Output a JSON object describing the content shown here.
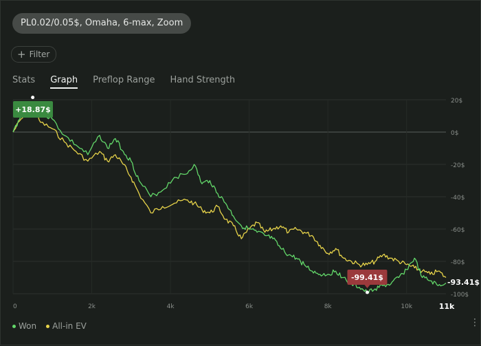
{
  "header": {
    "game_label": "PL0.02/0.05$, Omaha, 6-max, Zoom"
  },
  "filter": {
    "label": "Filter"
  },
  "tabs": [
    {
      "label": "Stats"
    },
    {
      "label": "Graph",
      "active": true
    },
    {
      "label": "Preflop Range"
    },
    {
      "label": "Hand Strength"
    }
  ],
  "colors": {
    "won": "#63d86a",
    "ev": "#e8d44a",
    "max_badge": "#3a8a40",
    "min_badge": "#9a3a3c",
    "background": "#1b1f1c"
  },
  "chart_data": {
    "type": "line",
    "x_range": [
      0,
      11000
    ],
    "y_range": [
      -100,
      20
    ],
    "x_ticks": [
      "0",
      "2k",
      "4k",
      "6k",
      "8k",
      "10k",
      "11k"
    ],
    "y_ticks": [
      "20$",
      "0$",
      "-20$",
      "-40$",
      "-60$",
      "-80$",
      "-100$"
    ],
    "grid": true,
    "series": [
      {
        "name": "Won",
        "x": [
          0,
          200,
          500,
          700,
          1000,
          1300,
          1600,
          1900,
          2200,
          2400,
          2600,
          2800,
          3000,
          3200,
          3500,
          3800,
          4100,
          4400,
          4600,
          4800,
          5000,
          5200,
          5400,
          5600,
          5800,
          6000,
          6200,
          6400,
          6600,
          6800,
          7000,
          7200,
          7400,
          7600,
          7800,
          8000,
          8200,
          8400,
          8600,
          8800,
          9000,
          9200,
          9400,
          9600,
          9800,
          10000,
          10200,
          10400,
          10600,
          10800,
          11000
        ],
        "y": [
          0,
          10,
          18.87,
          12,
          8,
          -2,
          -8,
          -14,
          -2,
          -10,
          -4,
          -12,
          -18,
          -30,
          -40,
          -36,
          -28,
          -26,
          -20,
          -32,
          -30,
          -38,
          -44,
          -52,
          -58,
          -60,
          -62,
          -64,
          -66,
          -72,
          -76,
          -78,
          -82,
          -86,
          -88,
          -88,
          -86,
          -90,
          -94,
          -96,
          -99.41,
          -97,
          -95,
          -94,
          -90,
          -85,
          -78,
          -90,
          -92,
          -95,
          -93.41
        ]
      },
      {
        "name": "All-in EV",
        "x": [
          0,
          200,
          500,
          700,
          1000,
          1300,
          1600,
          1900,
          2200,
          2400,
          2600,
          2800,
          3000,
          3200,
          3500,
          3800,
          4100,
          4400,
          4600,
          4800,
          5000,
          5200,
          5400,
          5600,
          5800,
          6000,
          6200,
          6400,
          6600,
          6800,
          7000,
          7200,
          7400,
          7600,
          7800,
          8000,
          8200,
          8400,
          8600,
          8800,
          9000,
          9200,
          9400,
          9600,
          9800,
          10000,
          10200,
          10400,
          10600,
          10800,
          11000
        ],
        "y": [
          0,
          8,
          14,
          6,
          2,
          -6,
          -12,
          -18,
          -12,
          -18,
          -14,
          -20,
          -28,
          -38,
          -50,
          -46,
          -44,
          -42,
          -44,
          -48,
          -50,
          -46,
          -54,
          -58,
          -66,
          -60,
          -56,
          -62,
          -60,
          -58,
          -62,
          -60,
          -62,
          -64,
          -70,
          -75,
          -72,
          -78,
          -80,
          -82,
          -82,
          -80,
          -76,
          -78,
          -80,
          -82,
          -84,
          -86,
          -88,
          -86,
          -90
        ]
      }
    ],
    "annotations": {
      "max_label": "+18.87$",
      "min_label": "-99.41$",
      "end_label": "-93.41$"
    }
  },
  "legend": {
    "won_label": "Won",
    "ev_label": "All-in EV"
  }
}
